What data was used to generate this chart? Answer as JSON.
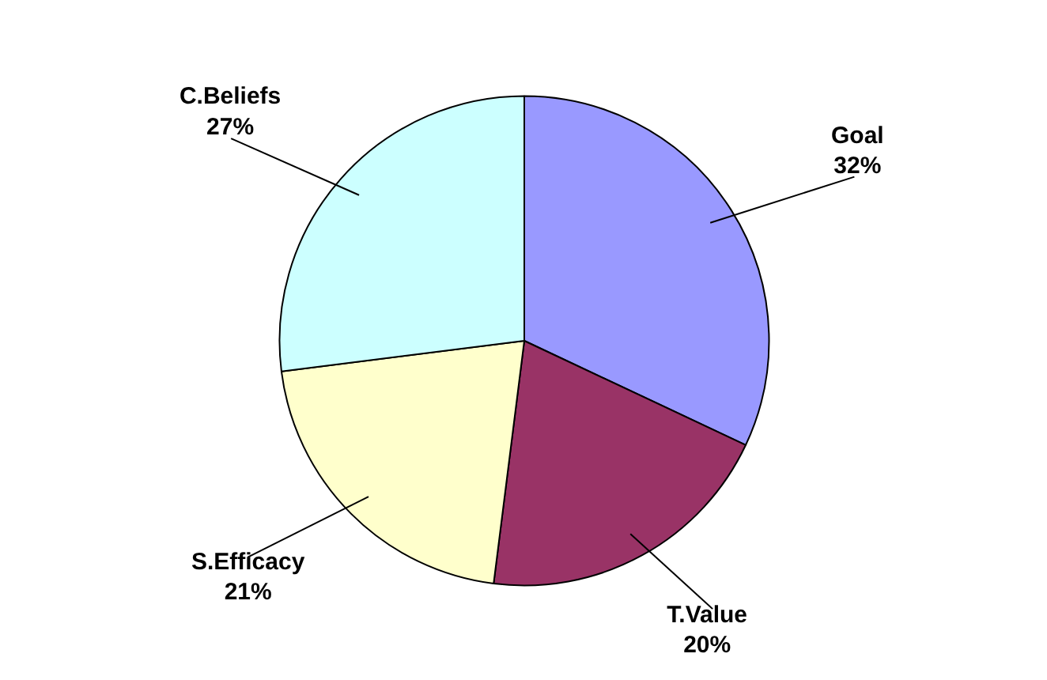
{
  "chart_data": {
    "type": "pie",
    "categories": [
      "Goal",
      "T.Value",
      "S.Efficacy",
      "C.Beliefs"
    ],
    "values": [
      32,
      20,
      21,
      27
    ],
    "colors": [
      "#9999ff",
      "#993366",
      "#ffffcc",
      "#ccffff"
    ],
    "value_labels": [
      "32%",
      "20%",
      "21%",
      "27%"
    ]
  }
}
